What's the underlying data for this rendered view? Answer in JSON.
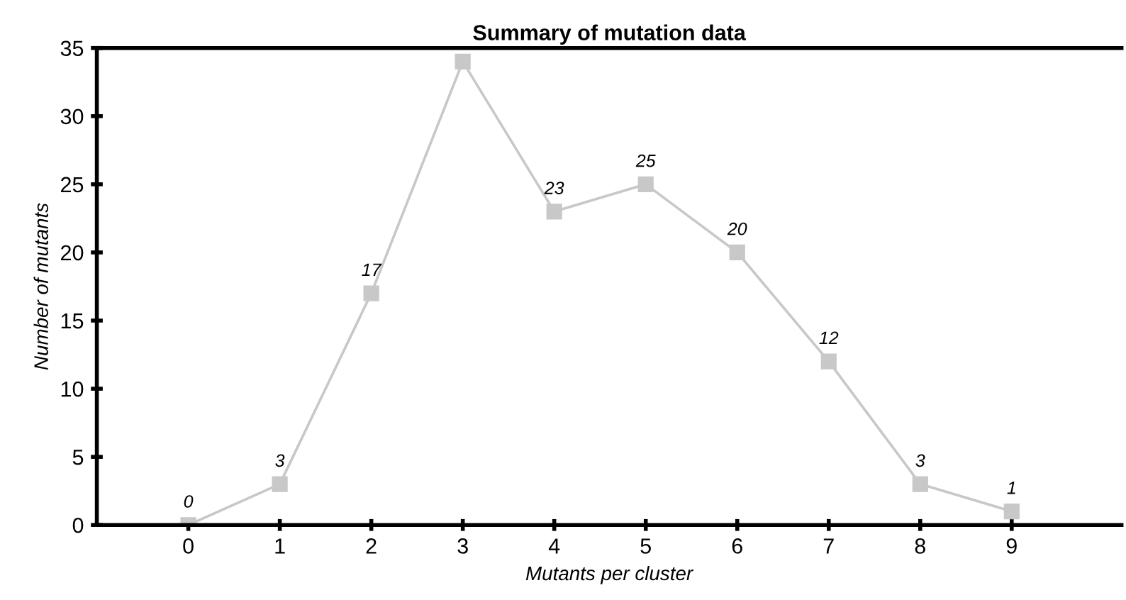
{
  "chart_data": {
    "type": "line",
    "title": "Summary of mutation data",
    "xlabel": "Mutants per cluster",
    "ylabel": "Number of mutants",
    "x": [
      0,
      1,
      2,
      3,
      4,
      5,
      6,
      7,
      8,
      9
    ],
    "series": [
      {
        "color": "#c8c8c8",
        "values": [
          0,
          3,
          17,
          34,
          23,
          25,
          20,
          12,
          3,
          1
        ],
        "value_labels": [
          "0",
          "3",
          "17",
          null,
          "23",
          "25",
          "20",
          "12",
          "3",
          "1"
        ]
      }
    ],
    "xlim": [
      -1,
      10.2
    ],
    "xticks": [
      0,
      1,
      2,
      3,
      4,
      5,
      6,
      7,
      8,
      9
    ],
    "ylim": [
      0,
      35
    ],
    "yticks": [
      0,
      5,
      10,
      15,
      20,
      25,
      30,
      35
    ],
    "grid": false,
    "legend": false,
    "marker": "square",
    "line_style": "solid"
  }
}
